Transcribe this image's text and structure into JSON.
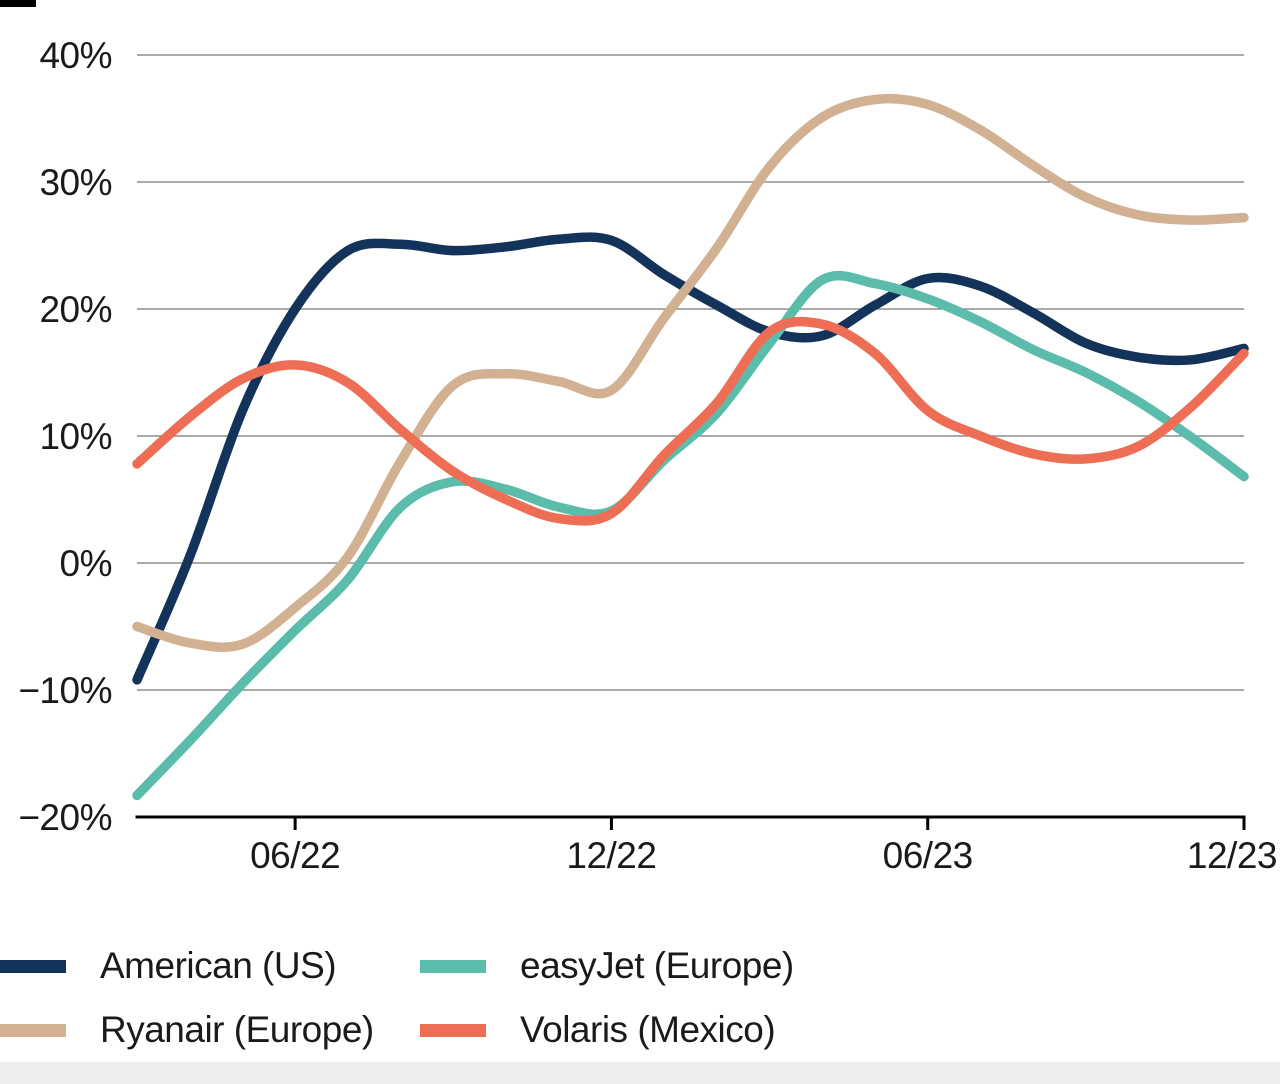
{
  "chart_data": {
    "type": "line",
    "title": "",
    "xlabel": "",
    "ylabel": "",
    "ylim": [
      -20,
      40
    ],
    "grid": "horizontal",
    "grid_color": "#777777",
    "axis_color": "#000000",
    "text_color": "#1a1a1a",
    "legend_position": "bottom-left, two columns",
    "x": [
      "03/22",
      "04/22",
      "05/22",
      "06/22",
      "07/22",
      "08/22",
      "09/22",
      "10/22",
      "11/22",
      "12/22",
      "01/23",
      "02/23",
      "03/23",
      "04/23",
      "05/23",
      "06/23",
      "07/23",
      "08/23",
      "09/23",
      "10/23",
      "11/23",
      "12/23"
    ],
    "x_tick_labels": [
      {
        "label": "06/22",
        "index": 3
      },
      {
        "label": "12/22",
        "index": 9
      },
      {
        "label": "06/23",
        "index": 15
      },
      {
        "label": "12/23",
        "index": 21
      }
    ],
    "y_ticks": [
      {
        "label": "40%",
        "value": 40
      },
      {
        "label": "30%",
        "value": 30
      },
      {
        "label": "20%",
        "value": 20
      },
      {
        "label": "10%",
        "value": 10
      },
      {
        "label": "0%",
        "value": 0
      },
      {
        "label": "−10%",
        "value": -10
      },
      {
        "label": "−20%",
        "value": -20
      }
    ],
    "series": [
      {
        "name": "American (US)",
        "color": "#14335a",
        "values": [
          -9.2,
          0.5,
          12.0,
          20.0,
          24.6,
          25.1,
          24.6,
          24.9,
          25.5,
          25.4,
          22.7,
          20.3,
          18.2,
          17.9,
          20.3,
          22.4,
          21.8,
          19.7,
          17.3,
          16.2,
          16.0,
          16.9
        ]
      },
      {
        "name": "Ryanair (Europe)",
        "color": "#d2b193",
        "values": [
          -5.0,
          -6.3,
          -6.4,
          -3.5,
          0.5,
          8.0,
          14.0,
          14.9,
          14.3,
          13.6,
          19.3,
          24.8,
          31.2,
          35.1,
          36.5,
          36.1,
          34.1,
          31.3,
          28.8,
          27.4,
          27.0,
          27.2
        ]
      },
      {
        "name": "easyJet (Europe)",
        "color": "#5cbcab",
        "values": [
          -18.3,
          -14.0,
          -9.5,
          -5.3,
          -1.3,
          4.4,
          6.4,
          5.8,
          4.4,
          4.1,
          8.1,
          11.8,
          17.3,
          22.3,
          22.0,
          20.8,
          19.0,
          16.8,
          15.0,
          12.7,
          9.9,
          6.8
        ]
      },
      {
        "name": "Volaris (Mexico)",
        "color": "#ee6e55",
        "values": [
          7.8,
          11.5,
          14.5,
          15.6,
          14.2,
          10.5,
          7.2,
          5.0,
          3.5,
          3.9,
          8.5,
          12.6,
          18.2,
          18.8,
          16.5,
          12.0,
          10.0,
          8.6,
          8.2,
          9.2,
          12.3,
          16.5
        ]
      }
    ]
  }
}
